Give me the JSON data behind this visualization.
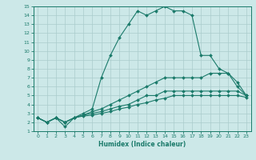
{
  "xlabel": "Humidex (Indice chaleur)",
  "bg_color": "#cce8e8",
  "grid_color": "#aacccc",
  "line_color": "#1a7a6a",
  "xlim": [
    -0.5,
    23.5
  ],
  "ylim": [
    1,
    15
  ],
  "xticks": [
    0,
    1,
    2,
    3,
    4,
    5,
    6,
    7,
    8,
    9,
    10,
    11,
    12,
    13,
    14,
    15,
    16,
    17,
    18,
    19,
    20,
    21,
    22,
    23
  ],
  "yticks": [
    1,
    2,
    3,
    4,
    5,
    6,
    7,
    8,
    9,
    10,
    11,
    12,
    13,
    14,
    15
  ],
  "lines": [
    {
      "x": [
        0,
        1,
        2,
        3,
        4,
        5,
        6,
        7,
        8,
        9,
        10,
        11,
        12,
        13,
        14,
        15,
        16,
        17,
        18,
        19,
        20,
        21,
        22,
        23
      ],
      "y": [
        2.5,
        2.0,
        2.5,
        1.5,
        2.5,
        3.0,
        3.5,
        7.0,
        9.5,
        11.5,
        13.0,
        14.5,
        14.0,
        14.5,
        15.0,
        14.5,
        14.5,
        14.0,
        9.5,
        9.5,
        8.0,
        7.5,
        6.0,
        5.0
      ]
    },
    {
      "x": [
        0,
        1,
        2,
        3,
        4,
        5,
        6,
        7,
        8,
        9,
        10,
        11,
        12,
        13,
        14,
        15,
        16,
        17,
        18,
        19,
        20,
        21,
        22,
        23
      ],
      "y": [
        2.5,
        2.0,
        2.5,
        2.0,
        2.5,
        2.8,
        3.2,
        3.5,
        4.0,
        4.5,
        5.0,
        5.5,
        6.0,
        6.5,
        7.0,
        7.0,
        7.0,
        7.0,
        7.0,
        7.5,
        7.5,
        7.5,
        6.5,
        5.0
      ]
    },
    {
      "x": [
        0,
        1,
        2,
        3,
        4,
        5,
        6,
        7,
        8,
        9,
        10,
        11,
        12,
        13,
        14,
        15,
        16,
        17,
        18,
        19,
        20,
        21,
        22,
        23
      ],
      "y": [
        2.5,
        2.0,
        2.5,
        2.0,
        2.5,
        2.8,
        3.0,
        3.2,
        3.5,
        3.8,
        4.0,
        4.5,
        5.0,
        5.0,
        5.5,
        5.5,
        5.5,
        5.5,
        5.5,
        5.5,
        5.5,
        5.5,
        5.5,
        5.0
      ]
    },
    {
      "x": [
        0,
        1,
        2,
        3,
        4,
        5,
        6,
        7,
        8,
        9,
        10,
        11,
        12,
        13,
        14,
        15,
        16,
        17,
        18,
        19,
        20,
        21,
        22,
        23
      ],
      "y": [
        2.5,
        2.0,
        2.5,
        2.0,
        2.5,
        2.7,
        2.8,
        3.0,
        3.2,
        3.5,
        3.7,
        4.0,
        4.2,
        4.5,
        4.7,
        5.0,
        5.0,
        5.0,
        5.0,
        5.0,
        5.0,
        5.0,
        5.0,
        4.8
      ]
    }
  ]
}
